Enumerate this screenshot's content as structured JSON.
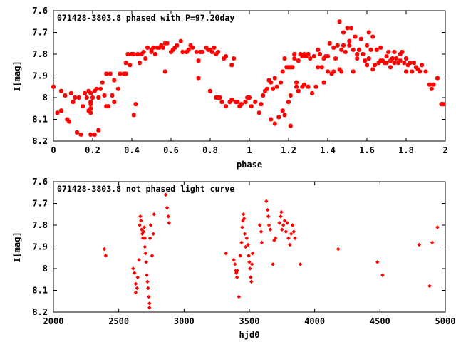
{
  "chart_data": [
    {
      "type": "scatter",
      "title": "071428-3803.8 phased with P=97.20day",
      "xlabel": "phase",
      "ylabel": "I[mag]",
      "xlim": [
        0,
        2
      ],
      "ylim": [
        7.6,
        8.2
      ],
      "y_inverted": true,
      "xticks": [
        "0",
        "0.2",
        "0.4",
        "0.6",
        "0.8",
        "1",
        "1.2",
        "1.4",
        "1.6",
        "1.8",
        "2"
      ],
      "xtick_values": [
        0,
        0.2,
        0.4,
        0.6,
        0.8,
        1.0,
        1.2,
        1.4,
        1.6,
        1.8,
        2.0
      ],
      "yticks": [
        "7.6",
        "7.7",
        "7.8",
        "7.9",
        "8",
        "8.1",
        "8.2"
      ],
      "ytick_values": [
        7.6,
        7.7,
        7.8,
        7.9,
        8.0,
        8.1,
        8.2
      ],
      "marker": "star",
      "color": "#ff0000",
      "points": [
        [
          0.0,
          7.95
        ],
        [
          0.02,
          8.07
        ],
        [
          0.04,
          8.06
        ],
        [
          0.04,
          7.97
        ],
        [
          0.06,
          7.99
        ],
        [
          0.07,
          8.1
        ],
        [
          0.08,
          8.11
        ],
        [
          0.09,
          7.98
        ],
        [
          0.1,
          8.02
        ],
        [
          0.11,
          8.0
        ],
        [
          0.12,
          8.16
        ],
        [
          0.13,
          8.0
        ],
        [
          0.14,
          8.17
        ],
        [
          0.15,
          8.04
        ],
        [
          0.16,
          7.98
        ],
        [
          0.17,
          8.0
        ],
        [
          0.18,
          7.97
        ],
        [
          0.18,
          8.06
        ],
        [
          0.19,
          8.02
        ],
        [
          0.19,
          8.17
        ],
        [
          0.19,
          7.98
        ],
        [
          0.19,
          8.03
        ],
        [
          0.19,
          8.05
        ],
        [
          0.19,
          8.07
        ],
        [
          0.2,
          8.0
        ],
        [
          0.21,
          7.97
        ],
        [
          0.21,
          8.17
        ],
        [
          0.22,
          7.96
        ],
        [
          0.23,
          8.15
        ],
        [
          0.23,
          8.0
        ],
        [
          0.24,
          7.96
        ],
        [
          0.25,
          7.93
        ],
        [
          0.26,
          7.99
        ],
        [
          0.27,
          8.04
        ],
        [
          0.27,
          7.89
        ],
        [
          0.28,
          8.04
        ],
        [
          0.29,
          7.89
        ],
        [
          0.3,
          7.99
        ],
        [
          0.31,
          8.02
        ],
        [
          0.31,
          7.92
        ],
        [
          0.33,
          7.96
        ],
        [
          0.34,
          7.89
        ],
        [
          0.36,
          7.89
        ],
        [
          0.37,
          7.84
        ],
        [
          0.37,
          7.89
        ],
        [
          0.38,
          7.8
        ],
        [
          0.39,
          7.85
        ],
        [
          0.4,
          7.8
        ],
        [
          0.41,
          7.8
        ],
        [
          0.41,
          8.08
        ],
        [
          0.42,
          8.03
        ],
        [
          0.43,
          7.8
        ],
        [
          0.44,
          7.84
        ],
        [
          0.45,
          7.8
        ],
        [
          0.46,
          7.79
        ],
        [
          0.47,
          7.82
        ],
        [
          0.48,
          7.77
        ],
        [
          0.5,
          7.79
        ],
        [
          0.5,
          7.78
        ],
        [
          0.51,
          7.77
        ],
        [
          0.52,
          7.8
        ],
        [
          0.53,
          7.77
        ],
        [
          0.54,
          7.77
        ],
        [
          0.55,
          7.76
        ],
        [
          0.56,
          7.77
        ],
        [
          0.57,
          7.75
        ],
        [
          0.57,
          7.88
        ],
        [
          0.58,
          7.75
        ],
        [
          0.6,
          7.79
        ],
        [
          0.61,
          7.78
        ],
        [
          0.62,
          7.77
        ],
        [
          0.63,
          7.76
        ],
        [
          0.65,
          7.74
        ],
        [
          0.66,
          7.79
        ],
        [
          0.68,
          7.79
        ],
        [
          0.69,
          7.78
        ],
        [
          0.7,
          7.76
        ],
        [
          0.71,
          7.77
        ],
        [
          0.73,
          7.79
        ],
        [
          0.74,
          7.83
        ],
        [
          0.74,
          7.91
        ],
        [
          0.75,
          7.79
        ],
        [
          0.76,
          7.79
        ],
        [
          0.78,
          7.77
        ],
        [
          0.79,
          7.78
        ],
        [
          0.8,
          7.78
        ],
        [
          0.8,
          7.97
        ],
        [
          0.81,
          7.79
        ],
        [
          0.82,
          7.77
        ],
        [
          0.83,
          7.8
        ],
        [
          0.83,
          8.0
        ],
        [
          0.84,
          7.79
        ],
        [
          0.84,
          8.0
        ],
        [
          0.85,
          8.0
        ],
        [
          0.86,
          8.02
        ],
        [
          0.87,
          7.82
        ],
        [
          0.88,
          7.81
        ],
        [
          0.88,
          8.04
        ],
        [
          0.9,
          8.02
        ],
        [
          0.91,
          8.01
        ],
        [
          0.91,
          7.85
        ],
        [
          0.92,
          7.82
        ],
        [
          0.93,
          8.02
        ],
        [
          0.94,
          8.02
        ],
        [
          0.95,
          8.04
        ],
        [
          0.96,
          8.03
        ],
        [
          0.98,
          8.02
        ],
        [
          0.99,
          8.0
        ],
        [
          1.0,
          8.0
        ],
        [
          1.01,
          8.04
        ],
        [
          1.03,
          8.02
        ],
        [
          1.05,
          8.07
        ],
        [
          1.06,
          8.03
        ],
        [
          1.07,
          7.99
        ],
        [
          1.08,
          7.97
        ],
        [
          1.09,
          7.96
        ],
        [
          1.1,
          7.92
        ],
        [
          1.11,
          7.93
        ],
        [
          1.11,
          8.1
        ],
        [
          1.12,
          7.96
        ],
        [
          1.13,
          7.91
        ],
        [
          1.13,
          8.12
        ],
        [
          1.14,
          7.95
        ],
        [
          1.15,
          8.09
        ],
        [
          1.16,
          7.93
        ],
        [
          1.17,
          8.06
        ],
        [
          1.17,
          7.88
        ],
        [
          1.18,
          8.08
        ],
        [
          1.18,
          7.82
        ],
        [
          1.19,
          7.86
        ],
        [
          1.2,
          7.86
        ],
        [
          1.2,
          8.02
        ],
        [
          1.21,
          7.99
        ],
        [
          1.21,
          7.86
        ],
        [
          1.21,
          8.13
        ],
        [
          1.22,
          7.86
        ],
        [
          1.23,
          7.82
        ],
        [
          1.23,
          7.8
        ],
        [
          1.24,
          7.95
        ],
        [
          1.24,
          7.93
        ],
        [
          1.25,
          7.83
        ],
        [
          1.25,
          7.97
        ],
        [
          1.26,
          7.8
        ],
        [
          1.27,
          7.95
        ],
        [
          1.27,
          7.81
        ],
        [
          1.28,
          7.94
        ],
        [
          1.28,
          7.8
        ],
        [
          1.29,
          7.81
        ],
        [
          1.3,
          7.8
        ],
        [
          1.3,
          7.95
        ],
        [
          1.31,
          7.82
        ],
        [
          1.32,
          7.98
        ],
        [
          1.33,
          7.81
        ],
        [
          1.34,
          7.95
        ],
        [
          1.35,
          7.86
        ],
        [
          1.35,
          7.78
        ],
        [
          1.36,
          7.8
        ],
        [
          1.37,
          7.86
        ],
        [
          1.38,
          7.82
        ],
        [
          1.38,
          7.93
        ],
        [
          1.39,
          7.81
        ],
        [
          1.4,
          7.88
        ],
        [
          1.4,
          7.81
        ],
        [
          1.41,
          7.75
        ],
        [
          1.42,
          7.89
        ],
        [
          1.43,
          7.77
        ],
        [
          1.43,
          7.88
        ],
        [
          1.44,
          7.82
        ],
        [
          1.45,
          7.76
        ],
        [
          1.46,
          7.65
        ],
        [
          1.46,
          7.87
        ],
        [
          1.47,
          7.78
        ],
        [
          1.47,
          7.88
        ],
        [
          1.48,
          7.76
        ],
        [
          1.48,
          7.7
        ],
        [
          1.49,
          7.79
        ],
        [
          1.5,
          7.68
        ],
        [
          1.51,
          7.74
        ],
        [
          1.51,
          7.76
        ],
        [
          1.52,
          7.68
        ],
        [
          1.53,
          7.88
        ],
        [
          1.53,
          7.78
        ],
        [
          1.54,
          7.72
        ],
        [
          1.55,
          7.8
        ],
        [
          1.55,
          7.82
        ],
        [
          1.56,
          7.78
        ],
        [
          1.57,
          7.73
        ],
        [
          1.58,
          7.8
        ],
        [
          1.59,
          7.83
        ],
        [
          1.6,
          7.85
        ],
        [
          1.6,
          7.76
        ],
        [
          1.61,
          7.82
        ],
        [
          1.61,
          7.7
        ],
        [
          1.62,
          7.78
        ],
        [
          1.63,
          7.87
        ],
        [
          1.63,
          7.72
        ],
        [
          1.64,
          7.85
        ],
        [
          1.65,
          7.78
        ],
        [
          1.66,
          7.84
        ],
        [
          1.67,
          7.77
        ],
        [
          1.67,
          7.83
        ],
        [
          1.68,
          7.83
        ],
        [
          1.69,
          7.84
        ],
        [
          1.7,
          7.81
        ],
        [
          1.7,
          7.84
        ],
        [
          1.71,
          7.79
        ],
        [
          1.72,
          7.83
        ],
        [
          1.72,
          7.86
        ],
        [
          1.73,
          7.82
        ],
        [
          1.74,
          7.79
        ],
        [
          1.74,
          7.84
        ],
        [
          1.75,
          7.82
        ],
        [
          1.76,
          7.84
        ],
        [
          1.77,
          7.8
        ],
        [
          1.77,
          7.83
        ],
        [
          1.78,
          7.79
        ],
        [
          1.79,
          7.84
        ],
        [
          1.8,
          7.82
        ],
        [
          1.8,
          7.88
        ],
        [
          1.81,
          7.85
        ],
        [
          1.82,
          7.84
        ],
        [
          1.83,
          7.88
        ],
        [
          1.84,
          7.84
        ],
        [
          1.85,
          7.86
        ],
        [
          1.86,
          7.87
        ],
        [
          1.87,
          7.88
        ],
        [
          1.88,
          7.85
        ],
        [
          1.9,
          7.88
        ],
        [
          1.92,
          7.94
        ],
        [
          1.93,
          7.96
        ],
        [
          1.94,
          7.94
        ],
        [
          1.96,
          7.91
        ],
        [
          1.98,
          8.03
        ],
        [
          1.99,
          8.03
        ]
      ]
    },
    {
      "type": "scatter",
      "title": "071428-3803.8 not phased light curve",
      "xlabel": "hjd0",
      "ylabel": "I[mag]",
      "xlim": [
        2000,
        5000
      ],
      "ylim": [
        7.6,
        8.2
      ],
      "y_inverted": true,
      "xticks": [
        "2000",
        "2500",
        "3000",
        "3500",
        "4000",
        "4500",
        "5000"
      ],
      "xtick_values": [
        2000,
        2500,
        3000,
        3500,
        4000,
        4500,
        5000
      ],
      "yticks": [
        "7.6",
        "7.7",
        "7.8",
        "7.9",
        "8",
        "8.1",
        "8.2"
      ],
      "ytick_values": [
        7.6,
        7.7,
        7.8,
        7.9,
        8.0,
        8.1,
        8.2
      ],
      "marker": "diamond",
      "color": "#ff0000",
      "points": [
        [
          2390,
          7.91
        ],
        [
          2400,
          7.94
        ],
        [
          2610,
          8.0
        ],
        [
          2620,
          8.02
        ],
        [
          2630,
          8.07
        ],
        [
          2630,
          8.11
        ],
        [
          2640,
          8.09
        ],
        [
          2645,
          8.04
        ],
        [
          2655,
          7.96
        ],
        [
          2660,
          7.8
        ],
        [
          2665,
          7.76
        ],
        [
          2670,
          7.78
        ],
        [
          2675,
          7.82
        ],
        [
          2680,
          7.84
        ],
        [
          2685,
          7.86
        ],
        [
          2690,
          7.83
        ],
        [
          2695,
          7.81
        ],
        [
          2700,
          7.86
        ],
        [
          2700,
          7.9
        ],
        [
          2705,
          7.93
        ],
        [
          2710,
          7.97
        ],
        [
          2715,
          8.03
        ],
        [
          2720,
          8.06
        ],
        [
          2725,
          8.09
        ],
        [
          2730,
          8.13
        ],
        [
          2735,
          8.16
        ],
        [
          2735,
          8.18
        ],
        [
          2740,
          7.86
        ],
        [
          2745,
          7.8
        ],
        [
          2755,
          7.94
        ],
        [
          2765,
          7.84
        ],
        [
          2770,
          7.75
        ],
        [
          2860,
          7.66
        ],
        [
          2870,
          7.72
        ],
        [
          2880,
          7.76
        ],
        [
          2885,
          7.79
        ],
        [
          3320,
          7.93
        ],
        [
          3380,
          7.96
        ],
        [
          3390,
          7.98
        ],
        [
          3395,
          8.01
        ],
        [
          3400,
          8.02
        ],
        [
          3405,
          8.04
        ],
        [
          3410,
          8.01
        ],
        [
          3420,
          8.13
        ],
        [
          3430,
          7.94
        ],
        [
          3440,
          7.88
        ],
        [
          3445,
          7.81
        ],
        [
          3450,
          7.78
        ],
        [
          3455,
          7.75
        ],
        [
          3460,
          7.77
        ],
        [
          3465,
          7.84
        ],
        [
          3470,
          7.9
        ],
        [
          3480,
          7.86
        ],
        [
          3490,
          7.89
        ],
        [
          3495,
          7.94
        ],
        [
          3500,
          7.97
        ],
        [
          3505,
          8.0
        ],
        [
          3510,
          8.04
        ],
        [
          3515,
          8.06
        ],
        [
          3520,
          7.98
        ],
        [
          3525,
          7.93
        ],
        [
          3580,
          7.8
        ],
        [
          3590,
          7.83
        ],
        [
          3595,
          7.88
        ],
        [
          3630,
          7.69
        ],
        [
          3640,
          7.73
        ],
        [
          3645,
          7.76
        ],
        [
          3650,
          7.8
        ],
        [
          3660,
          7.82
        ],
        [
          3680,
          7.98
        ],
        [
          3690,
          7.87
        ],
        [
          3700,
          7.86
        ],
        [
          3730,
          7.79
        ],
        [
          3740,
          7.76
        ],
        [
          3745,
          7.74
        ],
        [
          3750,
          7.82
        ],
        [
          3760,
          7.8
        ],
        [
          3770,
          7.78
        ],
        [
          3780,
          7.83
        ],
        [
          3790,
          7.79
        ],
        [
          3800,
          7.86
        ],
        [
          3810,
          7.89
        ],
        [
          3820,
          7.84
        ],
        [
          3830,
          7.8
        ],
        [
          3840,
          7.83
        ],
        [
          3850,
          7.86
        ],
        [
          3890,
          7.98
        ],
        [
          4180,
          7.91
        ],
        [
          4480,
          7.97
        ],
        [
          4520,
          8.03
        ],
        [
          4800,
          7.89
        ],
        [
          4880,
          8.08
        ],
        [
          4900,
          7.88
        ],
        [
          4940,
          7.81
        ]
      ]
    }
  ]
}
